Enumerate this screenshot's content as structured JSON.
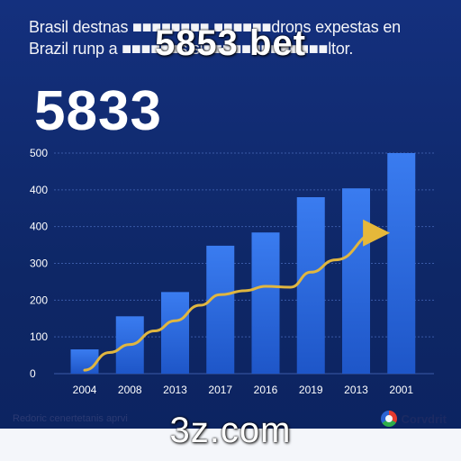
{
  "header": {
    "subtitle": "Brasil destnas ■■■■■■■■ ■■■■■■drons expestas en\nBrazil runp a ■■■■■■s si■■■■■■■■■■■■■ltor.",
    "overlay_title": "5853 bet",
    "big_number": "5833"
  },
  "footer": {
    "text": "Redoric cenertetanis aprvi",
    "overlay_domain": "3z.com",
    "brand_name": "Corvdrit",
    "brand_icon": "colored-ring-icon"
  },
  "colors": {
    "background": "#0f2a72",
    "bar": "#2a6ae0",
    "line": "#e0b640",
    "grid": "#3a5aa8",
    "tick": "#ffffff"
  },
  "chart_data": {
    "type": "bar",
    "categories": [
      "2004",
      "2008",
      "2013",
      "2017",
      "2016",
      "2019",
      "2013",
      "2001"
    ],
    "y_tick_labels": [
      "0",
      "100",
      "200",
      "300",
      "400",
      "400",
      "500"
    ],
    "values": [
      55,
      130,
      185,
      290,
      320,
      400,
      420,
      500
    ],
    "line": {
      "values": [
        8,
        48,
        66,
        97,
        120,
        155,
        179,
        188,
        198,
        196,
        230,
        258,
        319
      ],
      "x_positions": [
        0,
        0.55,
        1.0,
        1.55,
        2.0,
        2.55,
        3.0,
        3.55,
        4.0,
        4.55,
        5.0,
        5.55,
        6.45
      ]
    },
    "ylim": [
      0,
      500
    ],
    "grid": true,
    "legend": "none",
    "title": "",
    "xlabel": "",
    "ylabel": ""
  }
}
